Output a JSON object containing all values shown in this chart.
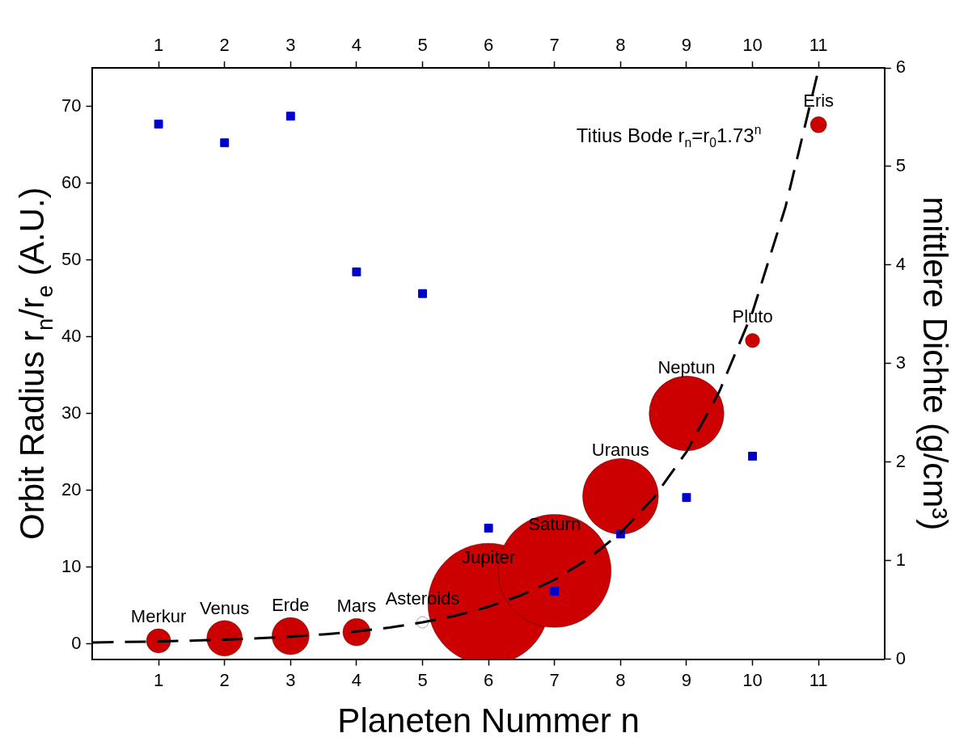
{
  "chart_data": {
    "type": "bubble",
    "xlabel": "Planeten Nummer n",
    "ylabel": "Orbit Radius r$_{n}$/r$_{e}$ (A.U.)",
    "y2label": "mittlere Dichte (g/cm³)",
    "x": [
      1,
      2,
      3,
      4,
      5,
      6,
      7,
      8,
      9,
      10,
      11
    ],
    "xlim": [
      0,
      12
    ],
    "xticks": [
      1,
      2,
      3,
      4,
      5,
      6,
      7,
      8,
      9,
      10,
      11
    ],
    "x2lim": [
      0,
      12
    ],
    "x2ticks": [
      1,
      2,
      3,
      4,
      5,
      6,
      7,
      8,
      9,
      10,
      11
    ],
    "ylim": [
      -2,
      75
    ],
    "yticks": [
      0,
      10,
      20,
      30,
      40,
      50,
      60,
      70
    ],
    "y2lim": [
      0,
      6
    ],
    "y2ticks": [
      0,
      1,
      2,
      3,
      4,
      5,
      6
    ],
    "legend": false,
    "grid": false,
    "series": [
      {
        "colors": [
          "#cc0000",
          "#cc0000",
          "#cc0000",
          "#cc0000",
          "#ffffff",
          "#cc0000",
          "#cc0000",
          "#cc0000",
          "#cc0000",
          "#cc0000",
          "#cc0000"
        ],
        "values": [
          0.39,
          0.72,
          1,
          1.52,
          2.8,
          5.2,
          9.5,
          19.2,
          30,
          39.5,
          67.6
        ],
        "sizes": [
          0.04,
          0.086,
          0.094,
          0.051,
          0.009,
          1,
          0.87,
          0.39,
          0.38,
          0.014,
          0.018
        ]
      },
      {
        "type": "scatter",
        "axis": "y2",
        "marker": "square",
        "color": "#0000cc",
        "values": [
          5.43,
          5.24,
          5.51,
          3.93,
          3.71,
          1.33,
          0.69,
          1.27,
          1.64,
          2.06,
          null
        ]
      },
      {
        "type": "line",
        "name": "Titius Bode r$_{n}$=r$_{0}$1.73$^{n}$",
        "color": "#000000",
        "line_style": "dashed",
        "x": [
          0,
          0.5,
          1,
          1.5,
          2,
          2.5,
          3,
          3.5,
          4,
          4.5,
          5,
          5.5,
          6,
          6.5,
          7,
          7.5,
          8,
          8.5,
          9,
          9.5,
          10,
          10.5,
          11
        ],
        "values": [
          0.18,
          0.24,
          0.31,
          0.41,
          0.54,
          0.71,
          0.93,
          1.23,
          1.61,
          2.12,
          2.79,
          3.67,
          4.83,
          6.35,
          8.35,
          10.98,
          14.45,
          19.0,
          25.0,
          32.9,
          43.2,
          56.9,
          74.8
        ]
      }
    ],
    "annotations": [
      {
        "text": "Merkur",
        "x": 1,
        "y": 0.39
      },
      {
        "text": "Venus",
        "x": 2,
        "y": 0.72
      },
      {
        "text": "Erde",
        "x": 3,
        "y": 1
      },
      {
        "text": "Mars",
        "x": 4,
        "y": 1.52
      },
      {
        "text": "Asteroids",
        "x": 5,
        "y": 2.8
      },
      {
        "text": "Jupiter",
        "x": 6,
        "y": 5.2
      },
      {
        "text": "Saturn",
        "x": 7,
        "y": 9.5
      },
      {
        "text": "Uranus",
        "x": 8,
        "y": 19.2
      },
      {
        "text": "Neptun",
        "x": 9,
        "y": 30
      },
      {
        "text": "Pluto",
        "x": 10,
        "y": 39.5
      },
      {
        "text": "Eris",
        "x": 11,
        "y": 67.6
      }
    ]
  }
}
